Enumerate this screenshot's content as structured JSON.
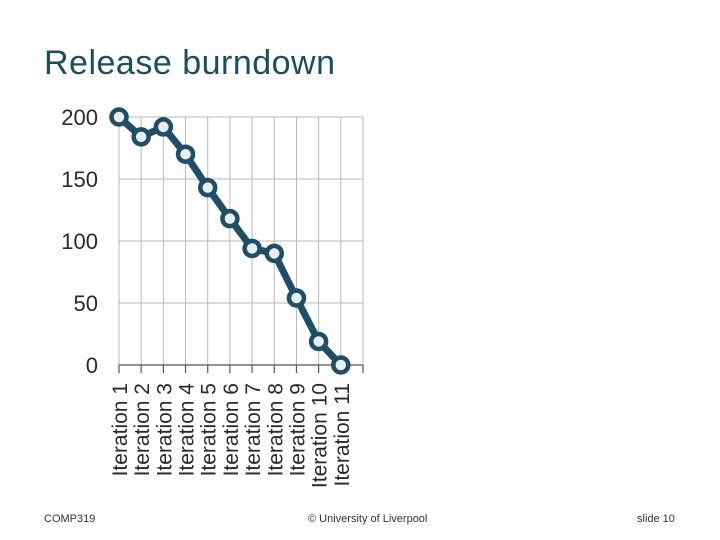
{
  "slide": {
    "title": "Release burndown",
    "footer_left": "COMP319",
    "footer_center": "© University of Liverpool",
    "footer_right": "slide  10"
  },
  "chart_data": {
    "type": "line",
    "title": "",
    "xlabel": "",
    "ylabel": "",
    "categories": [
      "Iteration 1",
      "Iteration 2",
      "Iteration 3",
      "Iteration 4",
      "Iteration 5",
      "Iteration 6",
      "Iteration 7",
      "Iteration 8",
      "Iteration 9",
      "Iteration 10",
      "Iteration 11"
    ],
    "values": [
      200,
      184,
      192,
      170,
      143,
      118,
      94,
      90,
      54,
      19,
      0
    ],
    "ylim": [
      0,
      200
    ],
    "yticks": [
      0,
      50,
      100,
      150,
      200
    ],
    "ytick_labels": [
      "0",
      "50",
      "100",
      "150",
      "200"
    ],
    "grid": true,
    "legend": "none",
    "colors": {
      "line": "#1f4e66",
      "marker_fill": "#e9eef1",
      "grid": "#b8b8b8"
    }
  }
}
